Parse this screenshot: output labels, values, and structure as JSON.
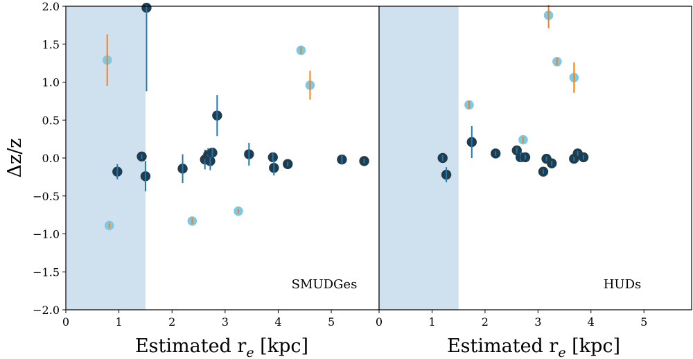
{
  "colors": {
    "shade": "#cfe0ee",
    "dark_point": "#1f3d4c",
    "dark_err": "#1f77b4",
    "light_point": "#7ec8e3",
    "light_err": "#ff7f0e"
  },
  "chart_data": [
    {
      "type": "scatter",
      "panel": "left",
      "label": "SMUDGes",
      "xlabel": "Estimated r",
      "xlabel_sub": "e",
      "xlabel_unit": "[kpc]",
      "ylabel": "Δz/z",
      "xlim": [
        0,
        5.9
      ],
      "ylim": [
        -2.0,
        2.0
      ],
      "xticks": [
        0,
        1,
        2,
        3,
        4,
        5
      ],
      "xtick_labels": [
        "0",
        "1",
        "2",
        "3",
        "4",
        "5"
      ],
      "yticks": [
        -2.0,
        -1.5,
        -1.0,
        -0.5,
        0.0,
        0.5,
        1.0,
        1.5,
        2.0
      ],
      "ytick_labels": [
        "−2.0",
        "−1.5",
        "−1.0",
        "−0.5",
        "0.0",
        "0.5",
        "1.0",
        "1.5",
        "2.0"
      ],
      "shaded_region": [
        0,
        1.5
      ],
      "series": [
        {
          "name": "dark",
          "points": [
            {
              "x": 0.97,
              "y": -0.18,
              "err": 0.1
            },
            {
              "x": 1.43,
              "y": 0.02,
              "err": 0.0
            },
            {
              "x": 1.5,
              "y": -0.24,
              "err": 0.2
            },
            {
              "x": 1.52,
              "y": 1.98,
              "err": 1.1
            },
            {
              "x": 2.2,
              "y": -0.14,
              "err": 0.19
            },
            {
              "x": 2.62,
              "y": -0.02,
              "err": 0.13
            },
            {
              "x": 2.68,
              "y": 0.04,
              "err": 0.09
            },
            {
              "x": 2.72,
              "y": -0.04,
              "err": 0.12
            },
            {
              "x": 2.76,
              "y": 0.07,
              "err": 0.06
            },
            {
              "x": 2.85,
              "y": 0.56,
              "err": 0.27
            },
            {
              "x": 3.45,
              "y": 0.05,
              "err": 0.15
            },
            {
              "x": 3.9,
              "y": 0.01,
              "err": 0.06
            },
            {
              "x": 3.92,
              "y": -0.13,
              "err": 0.1
            },
            {
              "x": 4.18,
              "y": -0.08,
              "err": 0.0
            },
            {
              "x": 5.2,
              "y": -0.02,
              "err": 0.06
            },
            {
              "x": 5.62,
              "y": -0.04,
              "err": 0.0
            }
          ]
        },
        {
          "name": "light",
          "points": [
            {
              "x": 0.78,
              "y": 1.29,
              "err": 0.34
            },
            {
              "x": 0.82,
              "y": -0.89,
              "err": 0.02
            },
            {
              "x": 2.38,
              "y": -0.83,
              "err": 0.04
            },
            {
              "x": 3.25,
              "y": -0.7,
              "err": 0.01
            },
            {
              "x": 4.43,
              "y": 1.42,
              "err": 0.05
            },
            {
              "x": 4.6,
              "y": 0.96,
              "err": 0.19
            }
          ]
        }
      ]
    },
    {
      "type": "scatter",
      "panel": "right",
      "label": "HUDs",
      "xlabel": "Estimated r",
      "xlabel_sub": "e",
      "xlabel_unit": "[kpc]",
      "xlim": [
        0,
        5.9
      ],
      "ylim": [
        -2.0,
        2.0
      ],
      "xticks": [
        0,
        1,
        2,
        3,
        4,
        5
      ],
      "xtick_labels": [
        "0",
        "1",
        "2",
        "3",
        "4",
        "5"
      ],
      "shaded_region": [
        0,
        1.5
      ],
      "series": [
        {
          "name": "dark",
          "points": [
            {
              "x": 1.2,
              "y": 0.0,
              "err": 0.04
            },
            {
              "x": 1.27,
              "y": -0.22,
              "err": 0.1
            },
            {
              "x": 1.75,
              "y": 0.21,
              "err": 0.21
            },
            {
              "x": 2.2,
              "y": 0.06,
              "err": 0.0
            },
            {
              "x": 2.6,
              "y": 0.1,
              "err": 0.04
            },
            {
              "x": 2.67,
              "y": 0.01,
              "err": 0.06
            },
            {
              "x": 2.76,
              "y": 0.01,
              "err": 0.0
            },
            {
              "x": 3.1,
              "y": -0.18,
              "err": 0.0
            },
            {
              "x": 3.16,
              "y": -0.01,
              "err": 0.0
            },
            {
              "x": 3.26,
              "y": -0.07,
              "err": 0.0
            },
            {
              "x": 3.68,
              "y": -0.01,
              "err": 0.0
            },
            {
              "x": 3.75,
              "y": 0.06,
              "err": 0.0
            },
            {
              "x": 3.86,
              "y": 0.01,
              "err": 0.0
            }
          ]
        },
        {
          "name": "light",
          "points": [
            {
              "x": 1.7,
              "y": 0.7,
              "err": 0.05
            },
            {
              "x": 2.72,
              "y": 0.24,
              "err": 0.04
            },
            {
              "x": 3.2,
              "y": 1.88,
              "err": 0.17
            },
            {
              "x": 3.36,
              "y": 1.27,
              "err": 0.05
            },
            {
              "x": 3.68,
              "y": 1.06,
              "err": 0.2
            }
          ]
        }
      ]
    }
  ]
}
